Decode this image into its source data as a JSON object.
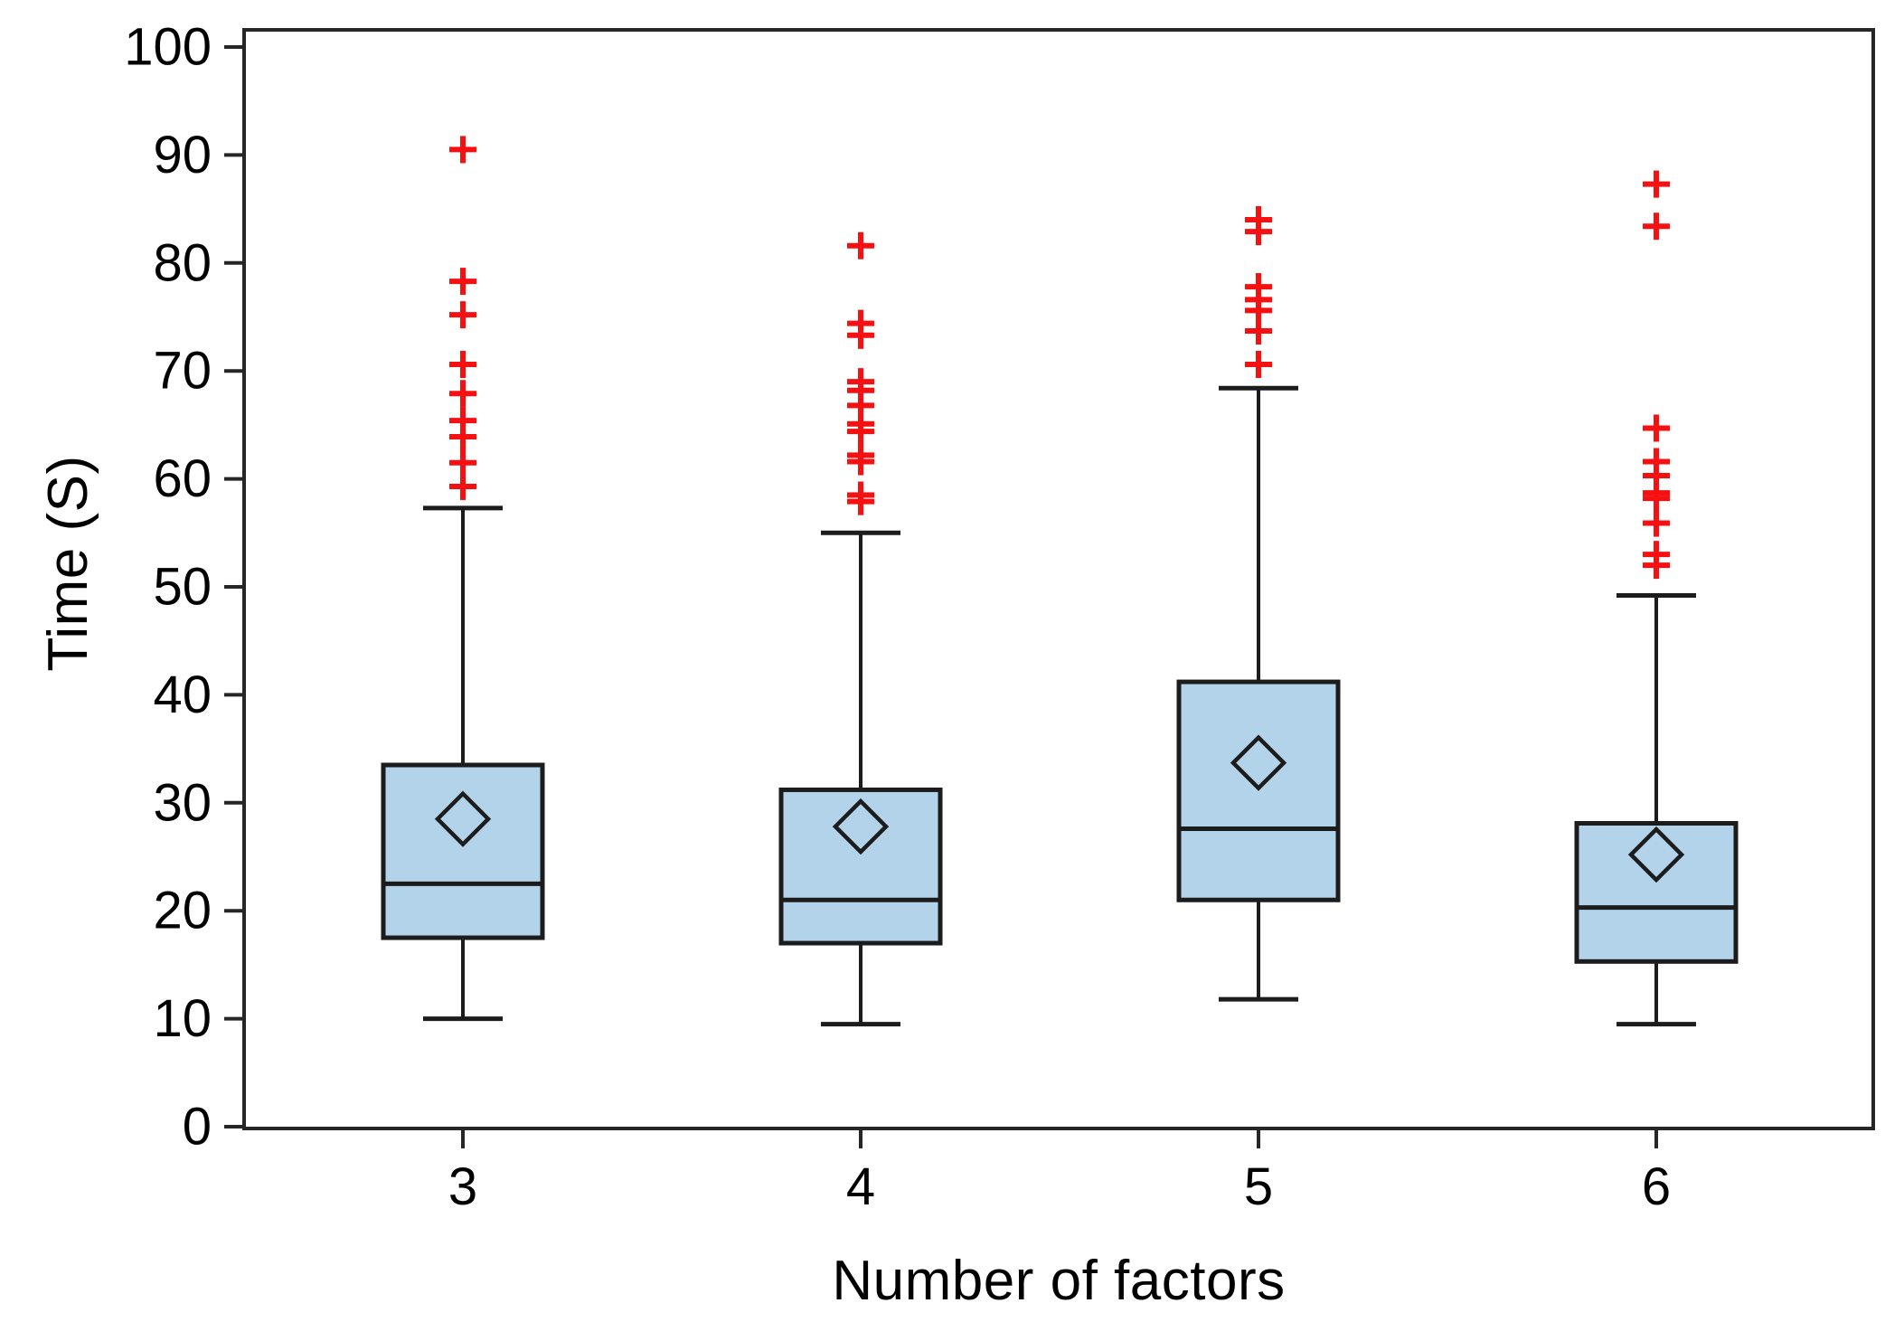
{
  "figure": {
    "background": "#ffffff"
  },
  "chart_data": {
    "type": "boxplot",
    "title": "",
    "xlabel": "Number of factors",
    "ylabel": "Time (S)",
    "categories": [
      "3",
      "4",
      "5",
      "6"
    ],
    "ylim": [
      0,
      100
    ],
    "ytick_step": 10,
    "yticks": [
      0,
      10,
      20,
      30,
      40,
      50,
      60,
      70,
      80,
      90,
      100
    ],
    "grid": false,
    "legend": false,
    "mean_marker": "hollow-diamond",
    "outlier_marker": "red-plus",
    "colors": {
      "box_fill": "#b3d3ea",
      "box_stroke": "#1c1c1c",
      "median_color": "#1c1c1c",
      "whisker_color": "#1c1c1c",
      "mean_marker_color": "#1c1c1c",
      "outlier_color": "#f51111",
      "axis_color": "#262626",
      "text_color": "#000000"
    },
    "series": [
      {
        "category": "3",
        "whisker_low": 10.0,
        "q1": 17.5,
        "median": 22.5,
        "q3": 33.5,
        "whisker_high": 57.3,
        "mean": 28.5,
        "outliers": [
          59.3,
          61.5,
          63.9,
          65.4,
          67.9,
          70.6,
          75.2,
          78.3,
          90.5
        ]
      },
      {
        "category": "4",
        "whisker_low": 9.5,
        "q1": 17.0,
        "median": 21.0,
        "q3": 31.2,
        "whisker_high": 55.0,
        "mean": 27.8,
        "outliers": [
          57.9,
          58.5,
          61.6,
          62.2,
          64.4,
          65.1,
          66.8,
          68.2,
          69.0,
          73.3,
          74.4,
          81.6
        ]
      },
      {
        "category": "5",
        "whisker_low": 11.8,
        "q1": 21.0,
        "median": 27.6,
        "q3": 41.2,
        "whisker_high": 68.4,
        "mean": 33.7,
        "outliers": [
          70.6,
          73.7,
          75.6,
          76.6,
          77.8,
          82.9,
          84.0
        ]
      },
      {
        "category": "6",
        "whisker_low": 9.5,
        "q1": 15.3,
        "median": 20.3,
        "q3": 28.1,
        "whisker_high": 49.2,
        "mean": 25.2,
        "outliers": [
          52.0,
          53.0,
          55.9,
          58.2,
          58.7,
          60.3,
          61.6,
          64.7,
          83.4,
          87.3
        ]
      }
    ]
  }
}
